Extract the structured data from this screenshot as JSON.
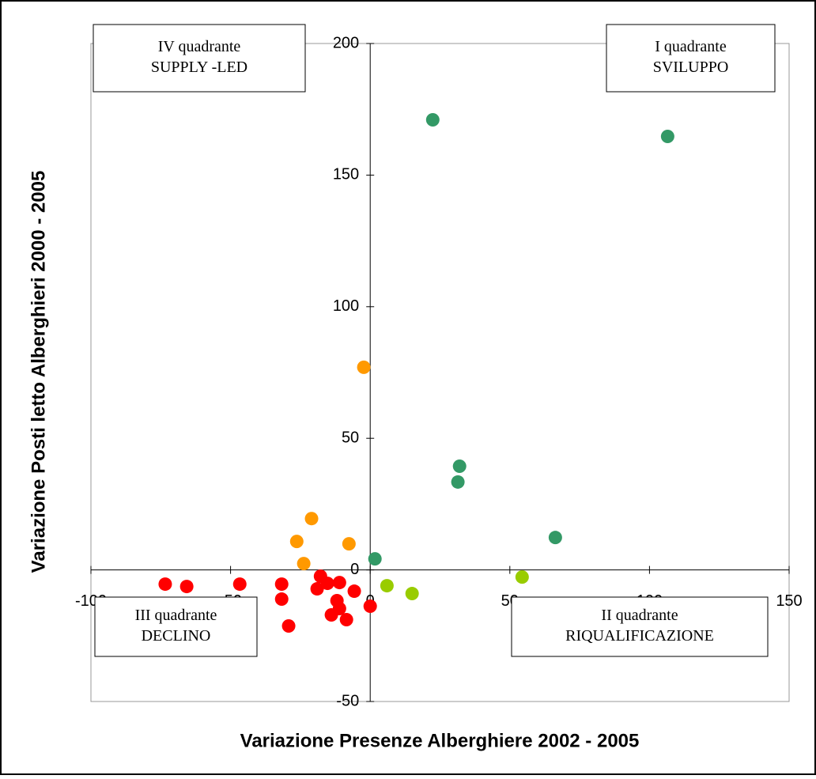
{
  "chart_data": {
    "type": "scatter",
    "x_label": "Variazione Presenze Alberghiere 2002 - 2005",
    "y_label": "Variazione Posti letto Alberghieri 2000 - 2005",
    "xlim": [
      -100,
      150
    ],
    "ylim": [
      -50,
      200
    ],
    "xticks": [
      -100,
      -50,
      0,
      50,
      100,
      150
    ],
    "yticks": [
      -50,
      0,
      50,
      100,
      150,
      200
    ],
    "annotations": [
      {
        "line1": "IV quadrante",
        "line2": "SUPPLY -LED"
      },
      {
        "line1": "I quadrante",
        "line2": "SVILUPPO"
      },
      {
        "line1": "III quadrante",
        "line2": "DECLINO"
      },
      {
        "line1": "II quadrante",
        "line2": "RIQUALIFICAZIONE"
      }
    ],
    "series": [
      {
        "color": "#339966",
        "x": [
          22.4,
          106.5,
          32,
          31.4,
          66.3,
          1.7
        ],
        "y": [
          171,
          164.7,
          39.4,
          33.4,
          12.3,
          4.2
        ]
      },
      {
        "color": "#99cc00",
        "x": [
          54.4,
          6,
          15
        ],
        "y": [
          -2.7,
          -6,
          -9
        ]
      },
      {
        "color": "#ff9900",
        "x": [
          -2.3,
          -21,
          -26.3,
          -7.6,
          -23.8
        ],
        "y": [
          77,
          19.5,
          10.8,
          9.9,
          2.4
        ]
      },
      {
        "color": "#ff0000",
        "x": [
          -73.4,
          -65.7,
          -46.7,
          -31.7,
          -31.7,
          -29.2,
          -17.8,
          -19,
          -15.3,
          -11,
          -5.7,
          -11.9,
          -11,
          -13.9,
          -8.5,
          0
        ],
        "y": [
          -5.4,
          -6.3,
          -5.4,
          -5.4,
          -11.1,
          -21.3,
          -2.4,
          -7.2,
          -5.1,
          -4.8,
          -8.1,
          -11.7,
          -14.7,
          -17.1,
          -18.9,
          -13.8
        ]
      }
    ]
  }
}
